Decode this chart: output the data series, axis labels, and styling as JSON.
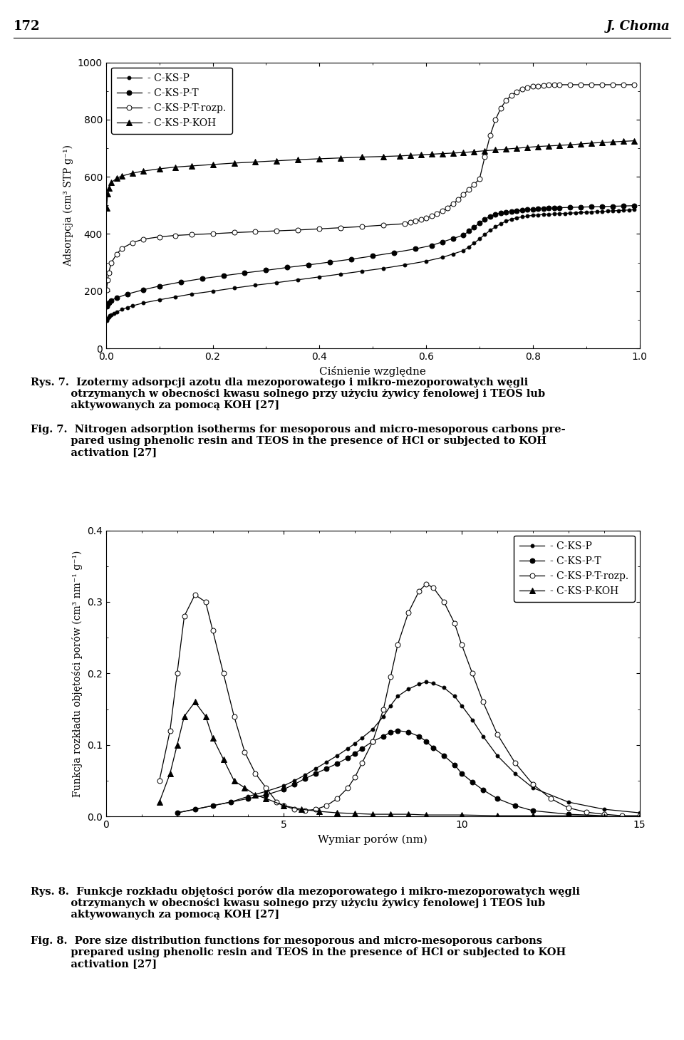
{
  "fig_width": 9.6,
  "fig_height": 14.6,
  "background_color": "#ffffff",
  "page_number": "172",
  "page_header": "J. Choma",
  "plot1": {
    "xlabel": "Ciśnienie względne",
    "ylabel": "Adsorpcja (cm³ STP g⁻¹)",
    "xlim": [
      0.0,
      1.0
    ],
    "ylim": [
      0,
      1000
    ],
    "yticks": [
      0,
      200,
      400,
      600,
      800,
      1000
    ],
    "xticks": [
      0.0,
      0.2,
      0.4,
      0.6,
      0.8,
      1.0
    ]
  },
  "plot2": {
    "xlabel": "Wymiar porów (nm)",
    "ylabel": "Funkcja rozkładu objętości porów (cm³ nm⁻¹ g⁻¹)",
    "xlim": [
      0,
      15
    ],
    "ylim": [
      0.0,
      0.4
    ],
    "yticks": [
      0.0,
      0.1,
      0.2,
      0.3,
      0.4
    ],
    "xticks": [
      0,
      5,
      10,
      15
    ]
  },
  "rys7_bold": "Rys. 7.",
  "rys7_text": " Izotermy adsorpcji azotu dla mezoporowatego i mikro-mezoporowatych węgli otrzymanych w obecności kwasu solnego przy użyciu żywicy fenolowej i TEOS lub aktywowanych za pomocą KOH [27]",
  "fig7_bold": "Fig. 7.",
  "fig7_text": " Nitrogen adsorption isotherms for mesoporous and micro-mesoporous carbons prepared using phenolic resin and TEOS in the presence of HCl or subjected to KOH activation [27]",
  "rys8_bold": "Rys. 8.",
  "rys8_text": " Funkcje rozkładu objętości porów dla mezoporowatego i mikro-mezoporowatych węgli otrzymanych w obecności kwasu solnego przy użyciu żywicy fenolowej i TEOS lub aktywowanych za pomocą KOH [27]",
  "fig8_bold": "Fig. 8.",
  "fig8_text": " Pore size distribution functions for mesoporous and micro-mesoporous carbons prepared using phenolic resin and TEOS in the presence of HCl or subjected to KOH activation [27]"
}
